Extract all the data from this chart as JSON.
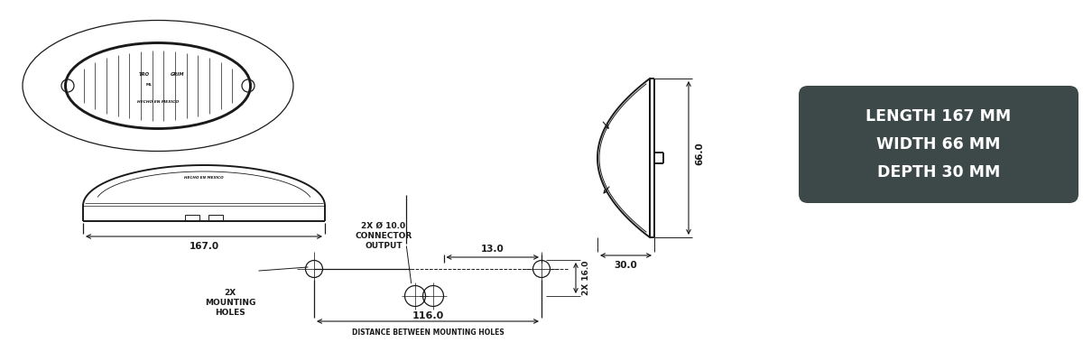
{
  "bg_color": "#ffffff",
  "line_color": "#1a1a1a",
  "box_bg_color": "#3d4848",
  "box_text_color": "#ffffff",
  "box_lines": [
    "LENGTH 167 MM",
    "WIDTH 66 MM",
    "DEPTH 30 MM"
  ],
  "dim_167": "167.0",
  "dim_66": "66.0",
  "dim_30": "30.0",
  "dim_13": "13.0",
  "dim_116": "116.0",
  "dim_16": "2X 16.0",
  "label_mounting_holes": "2X\nMOUNTING\nHOLES",
  "label_connector": "2X Ø 10.0\nCONNECTOR\nOUTPUT",
  "label_distance": "DISTANCE BETWEEN MOUNTING HOLES",
  "text_hecho": "HECHO EN MEXICO"
}
